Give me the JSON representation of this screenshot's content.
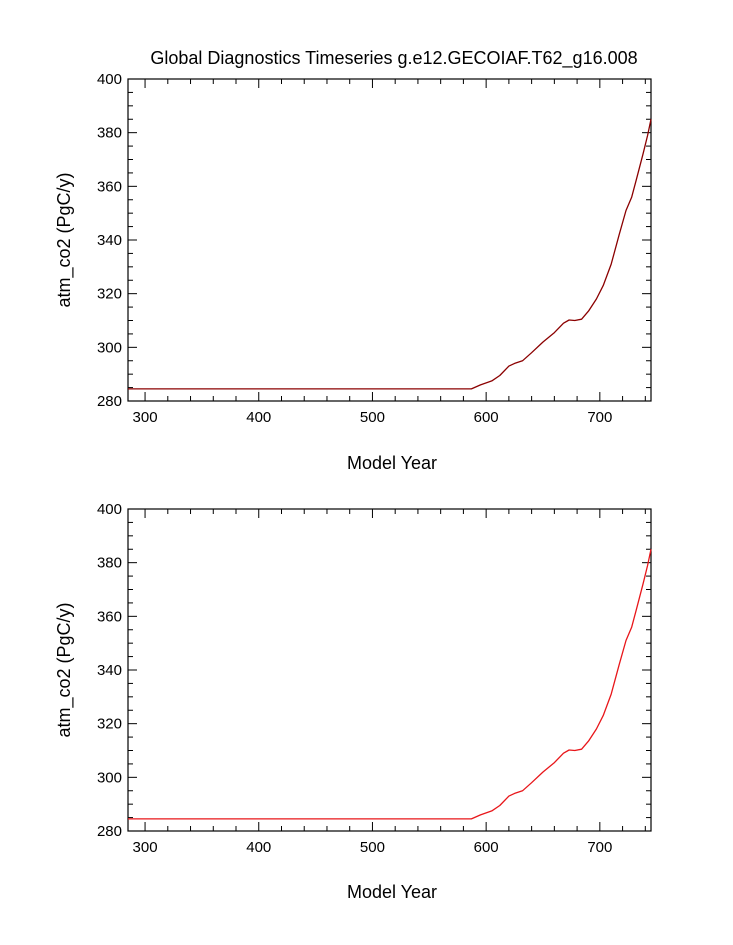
{
  "page": {
    "title": "Global Diagnostics Timeseries g.e12.GECOIAF.T62_g16.008"
  },
  "colors": {
    "series_top": "#8b0000",
    "series_bottom": "#e8161a",
    "axes": "#000000",
    "background": "#ffffff"
  },
  "chart_data": [
    {
      "type": "line",
      "xlabel": "Model Year",
      "ylabel": "atm_co2 (PgC/y)",
      "xlim": [
        285,
        745
      ],
      "ylim": [
        280,
        400
      ],
      "xticks": [
        300,
        400,
        500,
        600,
        700
      ],
      "yticks": [
        280,
        300,
        320,
        340,
        360,
        380,
        400
      ],
      "xtick_labels": [
        "300",
        "400",
        "500",
        "600",
        "700"
      ],
      "ytick_labels": [
        "280",
        "300",
        "320",
        "340",
        "360",
        "380",
        "400"
      ],
      "grid": false,
      "series": [
        {
          "color": "#8b0000",
          "x": [
            285,
            400,
            500,
            587,
            595,
            605,
            612,
            620,
            625,
            632,
            640,
            650,
            660,
            668,
            673,
            678,
            684,
            690,
            697,
            703,
            710,
            717,
            723,
            728,
            733,
            738,
            742,
            745
          ],
          "y": [
            284.5,
            284.5,
            284.5,
            284.5,
            286,
            287.5,
            289.5,
            293,
            294,
            295,
            298,
            302,
            305.5,
            309,
            310.2,
            310,
            310.5,
            313.5,
            318,
            323,
            331,
            342,
            351,
            356,
            364,
            372,
            379,
            385
          ]
        }
      ]
    },
    {
      "type": "line",
      "xlabel": "Model Year",
      "ylabel": "atm_co2 (PgC/y)",
      "xlim": [
        285,
        745
      ],
      "ylim": [
        280,
        400
      ],
      "xticks": [
        300,
        400,
        500,
        600,
        700
      ],
      "yticks": [
        280,
        300,
        320,
        340,
        360,
        380,
        400
      ],
      "xtick_labels": [
        "300",
        "400",
        "500",
        "600",
        "700"
      ],
      "ytick_labels": [
        "280",
        "300",
        "320",
        "340",
        "360",
        "380",
        "400"
      ],
      "grid": false,
      "series": [
        {
          "color": "#e8161a",
          "x": [
            285,
            400,
            500,
            587,
            595,
            605,
            612,
            620,
            625,
            632,
            640,
            650,
            660,
            668,
            673,
            678,
            684,
            690,
            697,
            703,
            710,
            717,
            723,
            728,
            733,
            738,
            742,
            745
          ],
          "y": [
            284.5,
            284.5,
            284.5,
            284.5,
            286,
            287.5,
            289.5,
            293,
            294,
            295,
            298,
            302,
            305.5,
            309,
            310.2,
            310,
            310.5,
            313.5,
            318,
            323,
            331,
            342,
            351,
            356,
            364,
            372,
            379,
            385
          ]
        }
      ]
    }
  ]
}
